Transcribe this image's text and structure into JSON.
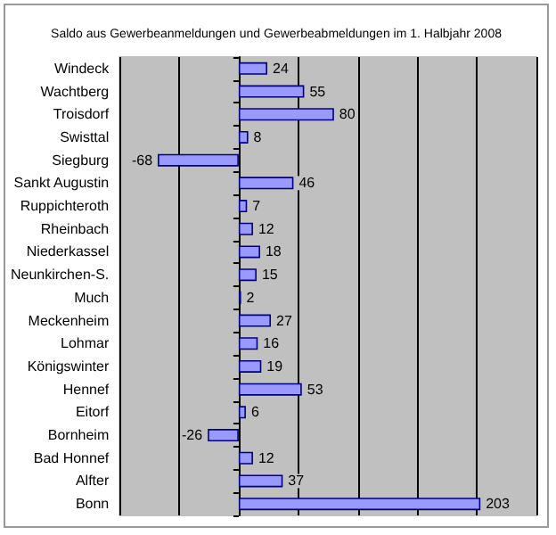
{
  "chart_data": {
    "type": "bar",
    "orientation": "horizontal",
    "title": "Saldo aus Gewerbeanmeldungen und Gewerbeabmeldungen im 1. Halbjahr 2008",
    "categories": [
      "Windeck",
      "Wachtberg",
      "Troisdorf",
      "Swisttal",
      "Siegburg",
      "Sankt Augustin",
      "Ruppichteroth",
      "Rheinbach",
      "Niederkassel",
      "Neunkirchen-S.",
      "Much",
      "Meckenheim",
      "Lohmar",
      "Königswinter",
      "Hennef",
      "Eitorf",
      "Bornheim",
      "Bad Honnef",
      "Alfter",
      "Bonn"
    ],
    "values": [
      24,
      55,
      80,
      8,
      -68,
      46,
      7,
      12,
      18,
      15,
      2,
      27,
      16,
      19,
      53,
      6,
      -26,
      12,
      37,
      203
    ],
    "color": "#9999ff",
    "data_labels": true,
    "grid": "x",
    "tick_labels": "y"
  }
}
